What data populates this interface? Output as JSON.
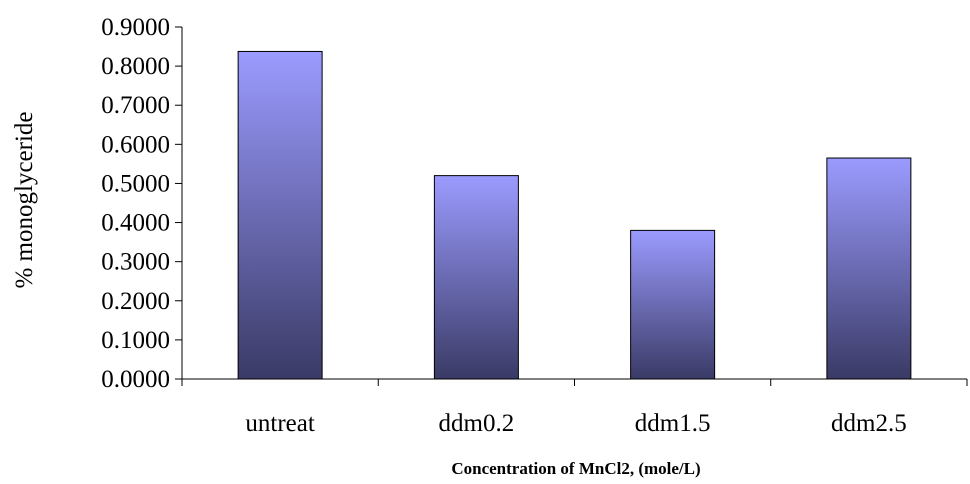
{
  "chart_data": {
    "type": "bar",
    "categories": [
      "untreat",
      "ddm0.2",
      "ddm1.5",
      "ddm2.5"
    ],
    "values": [
      0.8375,
      0.52,
      0.38,
      0.565
    ],
    "ylabel": "% monoglyceride",
    "xlabel": "Concentration of MnCl2, (mole/L)",
    "ylim": [
      0,
      0.9
    ],
    "yticks": [
      "0.0000",
      "0.1000",
      "0.2000",
      "0.3000",
      "0.4000",
      "0.5000",
      "0.6000",
      "0.7000",
      "0.8000",
      "0.9000"
    ],
    "grid": false,
    "legend": "none",
    "bar_gradient": [
      "#9b9bff",
      "#3a3a66"
    ]
  }
}
